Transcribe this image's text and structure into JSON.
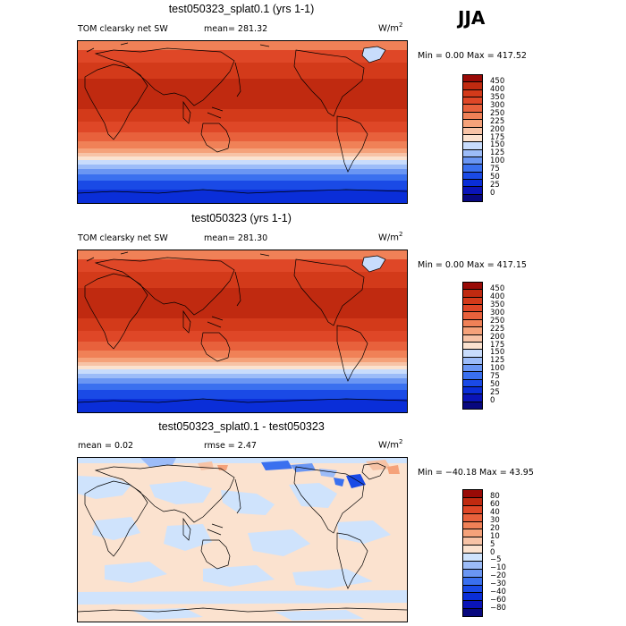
{
  "season": "JJA",
  "colors": {
    "full": [
      "#08087f",
      "#0a14b8",
      "#0a2ed8",
      "#1a4ae6",
      "#3a70ef",
      "#6a96f3",
      "#9cbcf8",
      "#c8dcfc",
      "#fbe2cf",
      "#f7c3a6",
      "#f5a27a",
      "#f08157",
      "#e8613c",
      "#df4727",
      "#d33a1a",
      "#c02a10",
      "#990a06"
    ],
    "diff": [
      "#08087f",
      "#0a14b8",
      "#0a2ed8",
      "#1a4ae6",
      "#3a70ef",
      "#6a96f3",
      "#9cbcf8",
      "#cfe3fc",
      "#fbe2cf",
      "#f7c3a6",
      "#f5a27a",
      "#f08157",
      "#e8613c",
      "#df4727",
      "#c02a10",
      "#990a06"
    ]
  },
  "panels": [
    {
      "title": "test050323_splat0.1 (yrs 1-1)",
      "variable": "TOM clearsky net SW",
      "mean_text": "mean= 281.32",
      "units_base": "W/m",
      "units_exp": "2",
      "minmax_text": "Min =    0.00 Max = 417.52",
      "colorbar_ticks": [
        "450",
        "400",
        "350",
        "300",
        "250",
        "225",
        "200",
        "175",
        "150",
        "125",
        "100",
        "75",
        "50",
        "25",
        "0"
      ]
    },
    {
      "title": "test050323 (yrs 1-1)",
      "variable": "TOM clearsky net SW",
      "mean_text": "mean= 281.30",
      "units_base": "W/m",
      "units_exp": "2",
      "minmax_text": "Min =    0.00 Max = 417.15",
      "colorbar_ticks": [
        "450",
        "400",
        "350",
        "300",
        "250",
        "225",
        "200",
        "175",
        "150",
        "125",
        "100",
        "75",
        "50",
        "25",
        "0"
      ]
    },
    {
      "title": "test050323_splat0.1 - test050323",
      "mean_text": "mean =    0.02",
      "rmse_text": "rmse =    2.47",
      "units_base": "W/m",
      "units_exp": "2",
      "minmax_text": "Min = −40.18 Max =   43.95",
      "colorbar_ticks": [
        "80",
        "60",
        "40",
        "30",
        "20",
        "10",
        "5",
        "0",
        "−5",
        "−10",
        "−20",
        "−30",
        "−40",
        "−60",
        "−80"
      ]
    }
  ]
}
